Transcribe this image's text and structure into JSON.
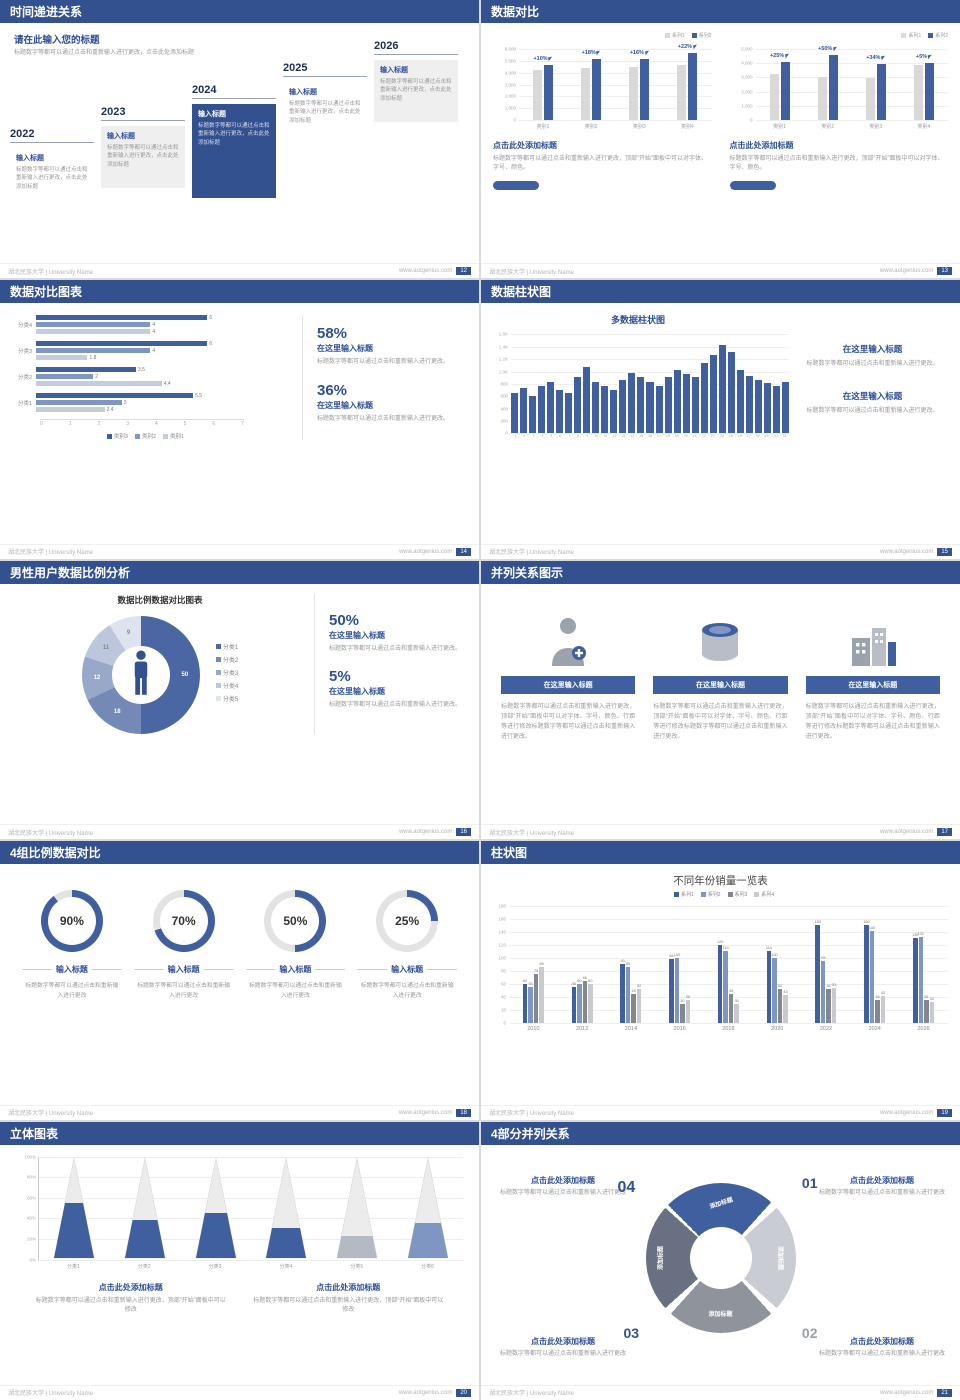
{
  "global": {
    "footer_left": "湖北民族大学 | University Name",
    "footer_site": "www.aotgenius.com",
    "colors": {
      "header": "#33508f",
      "blue": "#3f5f9e",
      "blue_mid": "#8096c2",
      "blue_light": "#c3cdde",
      "gray_bar": "#d9d9d9"
    }
  },
  "slides": {
    "timeline": {
      "header": "时间递进关系",
      "page": "12",
      "title": "请在此输入您的标题",
      "subtitle": "标题数字等都可以通过点击和重新输入进行更改，点击此处添加标题",
      "items": [
        {
          "year": "2022",
          "box_title": "输入标题",
          "body": "标题数字等都可以通过点击和重新输入进行更改，点击此处添加标题",
          "style": "plain"
        },
        {
          "year": "2023",
          "box_title": "输入标题",
          "body": "标题数字等都可以通过点击和重新输入进行更改，点击此处添加标题",
          "style": "gray"
        },
        {
          "year": "2024",
          "box_title": "输入标题",
          "body": "标题数字等都可以通过点击和重新输入进行更改，点击此处添加标题",
          "style": "blue"
        },
        {
          "year": "2025",
          "box_title": "输入标题",
          "body": "标题数字等都可以通过点击和重新输入进行更改，点击此处添加标题",
          "style": "plain"
        },
        {
          "year": "2026",
          "box_title": "输入标题",
          "body": "标题数字等都可以通过点击和重新输入进行更改，点击此处添加标题",
          "style": "gray"
        }
      ]
    },
    "compare": {
      "header": "数据对比",
      "page": "13",
      "legend": [
        "系列1",
        "系列2"
      ],
      "charts": [
        {
          "yticks": [
            "6,000",
            "5,000",
            "4,000",
            "3,000",
            "2,000",
            "1,000",
            "0"
          ],
          "ymax": 6000,
          "groups": [
            {
              "cat": "类别1",
              "pct": "+10%",
              "v1": 4200,
              "v2": 4620
            },
            {
              "cat": "类别2",
              "pct": "+18%",
              "v1": 4300,
              "v2": 5074
            },
            {
              "cat": "类别3",
              "pct": "+16%",
              "v1": 4400,
              "v2": 5104
            },
            {
              "cat": "类别4",
              "pct": "+22%",
              "v1": 4600,
              "v2": 5612
            }
          ],
          "heading": "点击此处添加标题",
          "body": "标题数字等都可以通过点击和重新输入进行更改，顶部“开始”面板中可以对字体、字号、颜色。"
        },
        {
          "yticks": [
            "5,000",
            "4,000",
            "3,000",
            "2,000",
            "1,000",
            "0"
          ],
          "ymax": 5000,
          "groups": [
            {
              "cat": "类别1",
              "pct": "+25%",
              "v1": 3200,
              "v2": 4000
            },
            {
              "cat": "类别2",
              "pct": "+50%",
              "v1": 3000,
              "v2": 4500
            },
            {
              "cat": "类别3",
              "pct": "+34%",
              "v1": 2900,
              "v2": 3890
            },
            {
              "cat": "类别4",
              "pct": "+5%",
              "v1": 3800,
              "v2": 3990
            }
          ],
          "heading": "点击此处添加标题",
          "body": "标题数字等都可以通过点击和重新输入进行更改，顶部“开始”面板中可以对字体、字号、颜色。"
        }
      ]
    },
    "hbar": {
      "header": "数据对比图表",
      "page": "14",
      "type": "bar",
      "xticks": [
        "0",
        "1",
        "2",
        "3",
        "4",
        "5",
        "6",
        "7"
      ],
      "xmax": 7,
      "groups": [
        {
          "label": "分类4",
          "values": [
            6,
            4,
            4
          ]
        },
        {
          "label": "分类3",
          "values": [
            6,
            4,
            1.8
          ]
        },
        {
          "label": "分类2",
          "values": [
            3.5,
            2,
            4.4
          ]
        },
        {
          "label": "分类1",
          "values": [
            5.5,
            3,
            2.4
          ]
        }
      ],
      "legend": [
        "类别3",
        "类别2",
        "类别1"
      ],
      "stats": [
        {
          "pct": "58%",
          "title": "在这里输入标题",
          "body": "标题数字等都可以通过点击和重新输入进行更改。"
        },
        {
          "pct": "36%",
          "title": "在这里输入标题",
          "body": "标题数字等都可以通过点击和重新输入进行更改。"
        }
      ]
    },
    "multibar": {
      "header": "数据柱状图",
      "page": "15",
      "title": "多数据柱状图",
      "type": "bar",
      "yticks": [
        "1.6K",
        "1.4K",
        "1.2K",
        "1.0K",
        "800",
        "600",
        "400",
        "200",
        "0"
      ],
      "ymax": 1600,
      "xlabels": [
        "1",
        "2",
        "3",
        "4",
        "5",
        "6",
        "7",
        "8",
        "9",
        "10",
        "11",
        "12",
        "13",
        "14",
        "15",
        "16",
        "17",
        "18",
        "19",
        "20",
        "21",
        "22",
        "23",
        "24",
        "25",
        "26",
        "27",
        "28",
        "29",
        "30",
        "31"
      ],
      "values": [
        650,
        720,
        600,
        760,
        820,
        700,
        640,
        900,
        1060,
        820,
        760,
        700,
        860,
        960,
        900,
        820,
        760,
        900,
        1010,
        950,
        900,
        1120,
        1260,
        1420,
        1310,
        1010,
        920,
        860,
        800,
        760,
        830
      ],
      "blocks": [
        {
          "title": "在这里输入标题",
          "body": "标题数字等都可以通过点击和重新输入进行更改。"
        },
        {
          "title": "在这里输入标题",
          "body": "标题数字等都可以通过点击和重新输入进行更改。"
        }
      ]
    },
    "donut": {
      "header": "男性用户数据比例分析",
      "page": "16",
      "title": "数据比例数据对比图表",
      "type": "pie",
      "values": [
        50,
        18,
        12,
        11,
        9
      ],
      "labels": [
        "50",
        "18",
        "12",
        "11",
        "9"
      ],
      "legend": [
        "分类1",
        "分类2",
        "分类3",
        "分类4",
        "分类5"
      ],
      "colors": [
        "#4a67a4",
        "#7489b6",
        "#97a8c9",
        "#bcc7dd",
        "#dde3ef"
      ],
      "stats": [
        {
          "pct": "50%",
          "title": "在这里输入标题",
          "body": "标题数字等都可以通过点击和重新输入进行更改。"
        },
        {
          "pct": "5%",
          "title": "在这里输入标题",
          "body": "标题数字等都可以通过点击和重新输入进行更改。"
        }
      ]
    },
    "parallel3": {
      "header": "并列关系图示",
      "page": "17",
      "items": [
        {
          "icon": "medic-icon",
          "button": "在这里输入标题",
          "body": "标题数字等都可以通过点击和重新输入进行更改，顶部“开始”面板中可以对字体、字号、颜色、行距等进行修改标题数字等都可以通过点击和重新输入进行更改。"
        },
        {
          "icon": "cylinder-icon",
          "button": "在这里输入标题",
          "body": "标题数字等都可以通过点击和重新输入进行更改，顶部“开始”面板中可以对字体、字号、颜色、行距等进行修改标题数字等都可以通过点击和重新输入进行更改。"
        },
        {
          "icon": "building-icon",
          "button": "在这里输入标题",
          "body": "标题数字等都可以通过点击和重新输入进行更改，顶部“开始”面板中可以对字体、字号、颜色、行距等进行修改标题数字等都可以通过点击和重新输入进行更改。"
        }
      ]
    },
    "rings": {
      "header": "4组比例数据对比",
      "page": "18",
      "items": [
        {
          "pct": 90,
          "label": "90%",
          "title": "输入标题",
          "body": "标题数字等都可以通过点击和重新输入进行更改"
        },
        {
          "pct": 70,
          "label": "70%",
          "title": "输入标题",
          "body": "标题数字等都可以通过点击和重新输入进行更改"
        },
        {
          "pct": 50,
          "label": "50%",
          "title": "输入标题",
          "body": "标题数字等都可以通过点击和重新输入进行更改"
        },
        {
          "pct": 25,
          "label": "25%",
          "title": "输入标题",
          "body": "标题数字等都可以通过点击和重新输入进行更改"
        }
      ]
    },
    "grouped": {
      "header": "柱状图",
      "page": "19",
      "title": "不同年份销量一览表",
      "type": "bar",
      "legend": [
        "系列1",
        "系列2",
        "系列3",
        "系列4"
      ],
      "colors": [
        "#3f5f9e",
        "#8096c2",
        "#83878f",
        "#c8cad0"
      ],
      "yticks": [
        "180",
        "160",
        "140",
        "120",
        "100",
        "80",
        "60",
        "40",
        "20",
        "0"
      ],
      "ymax": 180,
      "years": [
        "2010",
        "2012",
        "2014",
        "2016",
        "2018",
        "2020",
        "2022",
        "2024",
        "2026"
      ],
      "series": [
        {
          "name": "系列1",
          "values": [
            60,
            55,
            90,
            98,
            120,
            110,
            150,
            150,
            130
          ]
        },
        {
          "name": "系列2",
          "values": [
            55,
            60,
            85,
            100,
            110,
            100,
            95,
            140,
            132
          ]
        },
        {
          "name": "系列3",
          "values": [
            75,
            65,
            45,
            30,
            45,
            52,
            52,
            36,
            36
          ]
        },
        {
          "name": "系列4",
          "values": [
            85,
            60,
            52,
            36,
            30,
            43,
            53,
            42,
            32
          ]
        }
      ]
    },
    "cones": {
      "header": "立体图表",
      "page": "20",
      "yticks": [
        "100%",
        "80%",
        "60%",
        "40%",
        "20%",
        "0%"
      ],
      "items": [
        {
          "label": "分类1",
          "fill": 55
        },
        {
          "label": "分类2",
          "fill": 38
        },
        {
          "label": "分类3",
          "fill": 45
        },
        {
          "label": "分类4",
          "fill": 30
        },
        {
          "label": "分类5",
          "fill": 22
        },
        {
          "label": "分类6",
          "fill": 35
        }
      ],
      "blocks": [
        {
          "title": "点击此处添加标题",
          "body": "标题数字等都可以通过点击和重新输入进行更改，顶部“开始”面板中可以修改"
        },
        {
          "title": "点击此处添加标题",
          "body": "标题数字等都可以通过点击和重新输入进行更改，顶部“开始”面板中可以修改"
        }
      ]
    },
    "parallel4": {
      "header": "4部分并列关系",
      "page": "21",
      "segment_label": "添加标题",
      "numbers": [
        "01",
        "02",
        "03",
        "04"
      ],
      "blocks": [
        {
          "title": "点击此处添加标题",
          "body": "标题数字等都可以通过点击和重新输入进行更改"
        },
        {
          "title": "点击此处添加标题",
          "body": "标题数字等都可以通过点击和重新输入进行更改"
        },
        {
          "title": "点击此处添加标题",
          "body": "标题数字等都可以通过点击和重新输入进行更改"
        },
        {
          "title": "点击此处添加标题",
          "body": "标题数字等都可以通过点击和重新输入进行更改"
        }
      ]
    }
  }
}
